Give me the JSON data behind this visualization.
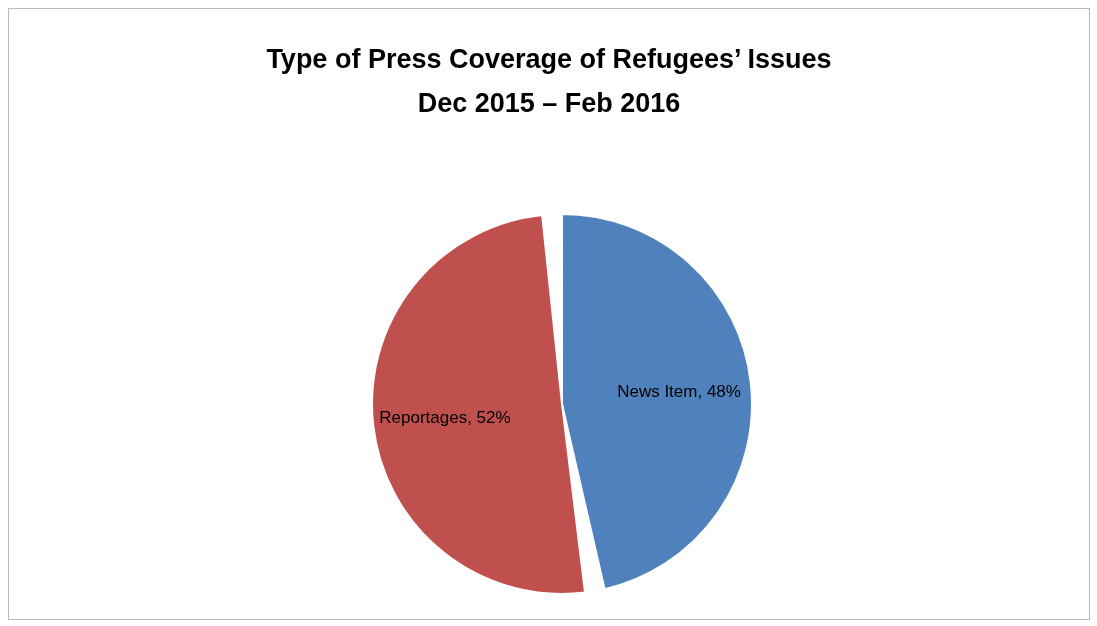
{
  "chart_data": {
    "type": "pie",
    "title": "Type of Press Coverage of Refugees’ Issues",
    "subtitle": "Dec 2015 – Feb 2016",
    "categories": [
      "News Item",
      "Reportages"
    ],
    "values": [
      48,
      52
    ],
    "colors": [
      "#4f81bd",
      "#c0504d"
    ],
    "value_labels": [
      ", 48%",
      ", 52%"
    ],
    "legend": false
  }
}
